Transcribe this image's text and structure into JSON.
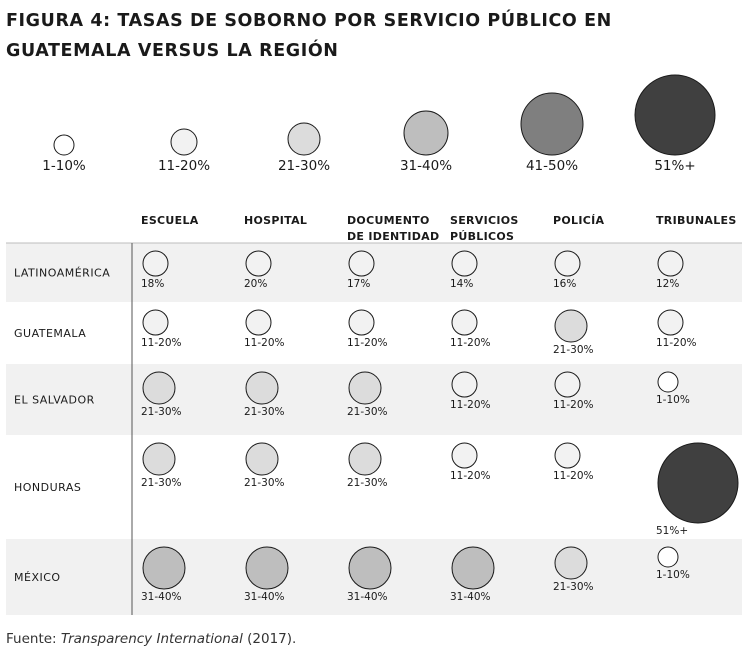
{
  "figure": {
    "title": "FIGURA 4: TASAS DE SOBORNO POR SERVICIO PÚBLICO EN GUATEMALA VERSUS LA REGIÓN",
    "source_prefix": "Fuente: ",
    "source_italic": "Transparency International",
    "source_suffix": " (2017)."
  },
  "chart_data": {
    "type": "table",
    "title": "FIGURA 4: TASAS DE SOBORNO POR SERVICIO PÚBLICO EN GUATEMALA VERSUS LA REGIÓN",
    "legend": [
      {
        "label": "1-10%",
        "level": 1,
        "color": "#ffffff"
      },
      {
        "label": "11-20%",
        "level": 2,
        "color": "#f2f2f2"
      },
      {
        "label": "21-30%",
        "level": 3,
        "color": "#dcdcdc"
      },
      {
        "label": "31-40%",
        "level": 4,
        "color": "#bebebe"
      },
      {
        "label": "41-50%",
        "level": 5,
        "color": "#7f7f7f"
      },
      {
        "label": "51%+",
        "level": 6,
        "color": "#404040"
      }
    ],
    "columns": [
      [
        "ESCUELA"
      ],
      [
        "HOSPITAL"
      ],
      [
        "DOCUMENTO",
        "DE IDENTIDAD"
      ],
      [
        "SERVICIOS",
        "PÚBLICOS"
      ],
      [
        "POLICÍA"
      ],
      [
        "TRIBUNALES"
      ]
    ],
    "rows": [
      {
        "name": "LATINOAMÉRICA",
        "cells": [
          {
            "text": "18%",
            "level": 2
          },
          {
            "text": "20%",
            "level": 2
          },
          {
            "text": "17%",
            "level": 2
          },
          {
            "text": "14%",
            "level": 2
          },
          {
            "text": "16%",
            "level": 2
          },
          {
            "text": "12%",
            "level": 2
          }
        ]
      },
      {
        "name": "GUATEMALA",
        "cells": [
          {
            "text": "11-20%",
            "level": 2
          },
          {
            "text": "11-20%",
            "level": 2
          },
          {
            "text": "11-20%",
            "level": 2
          },
          {
            "text": "11-20%",
            "level": 2
          },
          {
            "text": "21-30%",
            "level": 3
          },
          {
            "text": "11-20%",
            "level": 2
          }
        ]
      },
      {
        "name": "EL SALVADOR",
        "cells": [
          {
            "text": "21-30%",
            "level": 3
          },
          {
            "text": "21-30%",
            "level": 3
          },
          {
            "text": "21-30%",
            "level": 3
          },
          {
            "text": "11-20%",
            "level": 2
          },
          {
            "text": "11-20%",
            "level": 2
          },
          {
            "text": "1-10%",
            "level": 1
          }
        ]
      },
      {
        "name": "HONDURAS",
        "cells": [
          {
            "text": "21-30%",
            "level": 3
          },
          {
            "text": "21-30%",
            "level": 3
          },
          {
            "text": "21-30%",
            "level": 3
          },
          {
            "text": "11-20%",
            "level": 2
          },
          {
            "text": "11-20%",
            "level": 2
          },
          {
            "text": "51%+",
            "level": 6
          }
        ]
      },
      {
        "name": "MÉXICO",
        "cells": [
          {
            "text": "31-40%",
            "level": 4
          },
          {
            "text": "31-40%",
            "level": 4
          },
          {
            "text": "31-40%",
            "level": 4
          },
          {
            "text": "31-40%",
            "level": 4
          },
          {
            "text": "21-30%",
            "level": 3
          },
          {
            "text": "1-10%",
            "level": 1
          }
        ]
      }
    ]
  }
}
